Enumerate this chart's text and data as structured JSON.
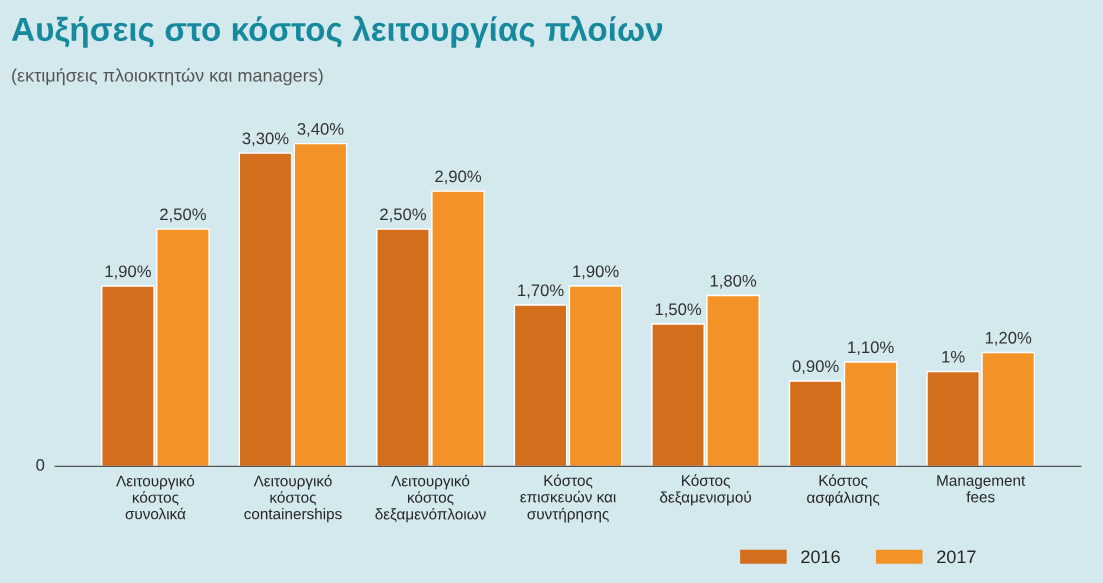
{
  "chart_data": {
    "type": "bar",
    "title": "Αυξήσεις στο κόστος λειτουργίας πλοίων",
    "subtitle": "(εκτιμήσεις πλοιοκτητών και managers)",
    "categories": [
      "Λειτουργικό\nκόστος\nσυνολικά",
      "Λειτουργικό\nκόστος\ncontainerships",
      "Λειτουργικό\nκόστος\nδεξαμενόπλοιων",
      "Κόστος\nεπισκευών και\nσυντήρησης",
      "Κόστος\nδεξαμενισμού",
      "Κόστος\nασφάλισης",
      "Management\nfees"
    ],
    "series": [
      {
        "name": "2016",
        "color": "#d36e1c",
        "values": [
          1.9,
          3.3,
          2.5,
          1.7,
          1.5,
          0.9,
          1.0
        ],
        "value_labels": [
          "1,90%",
          "3,30%",
          "2,50%",
          "1,70%",
          "1,50%",
          "0,90%",
          "1%"
        ]
      },
      {
        "name": "2017",
        "color": "#f39226",
        "values": [
          2.5,
          3.4,
          2.9,
          1.9,
          1.8,
          1.1,
          1.2
        ],
        "value_labels": [
          "2,50%",
          "3,40%",
          "2,90%",
          "1,90%",
          "1,80%",
          "1,10%",
          "1,20%"
        ]
      }
    ],
    "annotations": [
      "0"
    ],
    "grid": false,
    "legend": "bottom right"
  }
}
